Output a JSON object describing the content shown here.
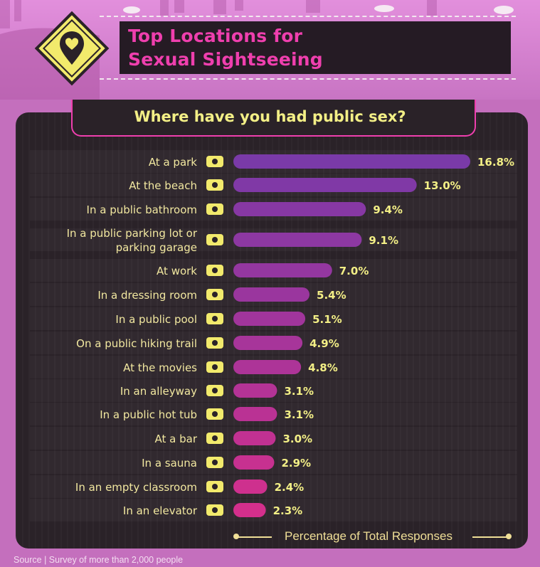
{
  "title": "Top Locations for\nSexual Sightseeing",
  "question": "Where have you had public sex?",
  "footer": "Percentage of Total Responses",
  "source": "Source | Survey of more than 2,000 people",
  "colors": {
    "bar_top": "#7a3aa8",
    "bar_bottom": "#d42f8c",
    "accent": "#ef3fae",
    "text": "#f3ef86",
    "label": "#f2e8a0",
    "panel": "#2a2228",
    "sign": "#f2ea6c"
  },
  "chart_data": {
    "type": "bar",
    "orientation": "horizontal",
    "title": "Where have you had public sex?",
    "xlabel": "Percentage of Total Responses",
    "unit": "%",
    "categories": [
      "At a park",
      "At the beach",
      "In a public bathroom",
      "In a public parking lot or parking garage",
      "At work",
      "In a dressing room",
      "In a public pool",
      "On a public hiking trail",
      "At the movies",
      "In an alleyway",
      "In a public hot tub",
      "At a bar",
      "In a sauna",
      "In an empty classroom",
      "In an elevator"
    ],
    "values": [
      16.8,
      13.0,
      9.4,
      9.1,
      7.0,
      5.4,
      5.1,
      4.9,
      4.8,
      3.1,
      3.1,
      3.0,
      2.9,
      2.4,
      2.3
    ],
    "value_labels": [
      "16.8%",
      "13.0%",
      "9.4%",
      "9.1%",
      "7.0%",
      "5.4%",
      "5.1%",
      "4.9%",
      "4.8%",
      "3.1%",
      "3.1%",
      "3.0%",
      "2.9%",
      "2.4%",
      "2.3%"
    ],
    "icons": [
      "trees-icon",
      "beach-icon",
      "toilet-icon",
      "car-icon",
      "laptop-icon",
      "hanger-icon",
      "pool-icon",
      "hiker-icon",
      "film-reel-icon",
      "alley-trash-icon",
      "hot-tub-icon",
      "cocktail-icon",
      "sauna-icon",
      "classroom-icon",
      "elevator-icon"
    ]
  }
}
